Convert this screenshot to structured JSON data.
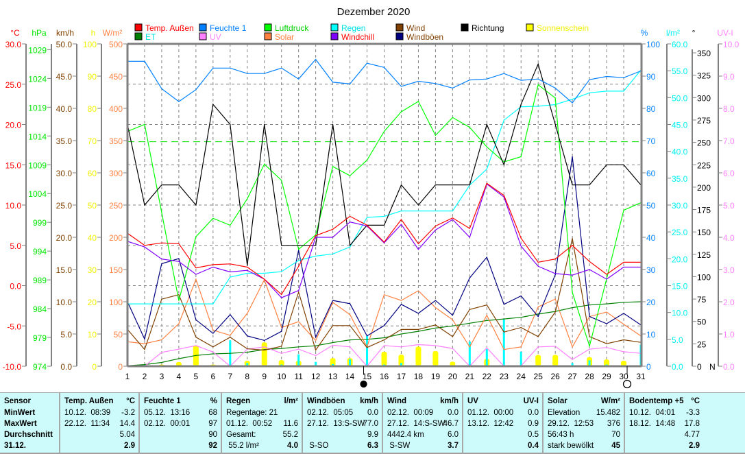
{
  "chart_data": {
    "type": "line",
    "title": "Dezember 2020",
    "xlabel": "",
    "x": [
      1,
      2,
      3,
      4,
      5,
      6,
      7,
      8,
      9,
      10,
      11,
      12,
      13,
      14,
      15,
      16,
      17,
      18,
      19,
      20,
      21,
      22,
      23,
      24,
      25,
      26,
      27,
      28,
      29,
      30,
      31
    ],
    "grid": true,
    "axes": {
      "temp": {
        "unit": "°C",
        "min": -10,
        "max": 30,
        "step": 5,
        "decimals": 1,
        "color": "#ff0000",
        "side": "left"
      },
      "pressure": {
        "unit": "hPa",
        "min": 974,
        "max": 1030,
        "step": 5,
        "first": 974,
        "last": 1029,
        "decimals": 0,
        "color": "#00e600",
        "side": "left",
        "reference": 1013
      },
      "speed": {
        "unit": "km/h",
        "min": 0,
        "max": 50,
        "step": 5,
        "decimals": 1,
        "color": "#804000",
        "side": "left"
      },
      "hours": {
        "unit": "h",
        "min": 0,
        "max": 100,
        "step": 10,
        "decimals": 0,
        "color": "#f0f000",
        "side": "left"
      },
      "solar": {
        "unit": "W/m²",
        "min": 0,
        "max": 500,
        "step": 50,
        "decimals": 0,
        "color": "#ff8040",
        "side": "left"
      },
      "humidity": {
        "unit": "%",
        "min": 0,
        "max": 100,
        "step": 10,
        "decimals": 0,
        "color": "#0080ff",
        "side": "right"
      },
      "rain": {
        "unit": "l/m²",
        "min": 0,
        "max": 60,
        "step": 5,
        "decimals": 1,
        "color": "#00f0f0",
        "side": "right"
      },
      "direction": {
        "unit": "°",
        "min": 0,
        "max": 360,
        "step": 25,
        "first": 25,
        "last": 350,
        "decimals": 0,
        "color": "#000000",
        "side": "right",
        "zero_label": "0",
        "north_label": "N"
      },
      "uv": {
        "unit": "UV-I",
        "min": 0,
        "max": 10,
        "step": 1,
        "decimals": 1,
        "color": "#ff80ff",
        "side": "right"
      }
    },
    "legend": [
      {
        "label": "Temp. Außen",
        "box": "#ff0000",
        "text": "#ff0000"
      },
      {
        "label": "ET",
        "box": "#008000",
        "text": "#00e0e0"
      },
      {
        "label": "Feuchte 1",
        "box": "#0080ff",
        "text": "#0080ff"
      },
      {
        "label": "UV",
        "box": "#ff80ff",
        "text": "#ff80ff"
      },
      {
        "label": "Luftdruck",
        "box": "#00ff00",
        "text": "#00d000"
      },
      {
        "label": "Solar",
        "box": "#ff8040",
        "text": "#ff8040"
      },
      {
        "label": "Regen",
        "box": "#00ffff",
        "text": "#00e0e0"
      },
      {
        "label": "Windchill",
        "box": "#8000ff",
        "text": "#ff0000"
      },
      {
        "label": "Wind",
        "box": "#804000",
        "text": "#804000"
      },
      {
        "label": "Windböen",
        "box": "#000080",
        "text": "#804000"
      },
      {
        "label": "Richtung",
        "box": "#000000",
        "text": "#000000"
      },
      {
        "label": "Sonnenschein",
        "box": "#ffff00",
        "text": "#f0f000"
      }
    ],
    "series": [
      {
        "name": "Sonnenschein",
        "axis": "hours",
        "kind": "bar",
        "color": "#ffff00",
        "values": [
          0,
          0,
          0.5,
          1.3,
          6.5,
          0.5,
          0,
          1.7,
          7.4,
          1.9,
          1.7,
          0,
          2.5,
          2.5,
          0,
          4.5,
          3.6,
          6.1,
          4.7,
          1.4,
          0,
          2.3,
          0,
          0,
          3.5,
          3.5,
          0,
          2.8,
          2.1,
          1.7,
          0
        ]
      },
      {
        "name": "Regen (Tag)",
        "axis": "rain",
        "kind": "thinbar",
        "color": "#00ffff",
        "values": [
          11.6,
          0.3,
          0,
          0,
          0,
          0,
          4.8,
          0.6,
          0,
          0.3,
          2.2,
          0.8,
          0.4,
          1.3,
          5.6,
          0.3,
          0.6,
          0,
          0,
          0,
          4.6,
          3.2,
          8.7,
          2.7,
          0,
          0,
          0.6,
          1.1,
          0.3,
          0,
          4.0
        ]
      },
      {
        "name": "ET",
        "axis": "rain",
        "kind": "line",
        "color": "#008000",
        "values": [
          0.1,
          0.3,
          0.7,
          1.4,
          2.0,
          2.3,
          2.4,
          2.6,
          3.1,
          3.3,
          3.6,
          3.8,
          4.4,
          4.9,
          5.0,
          5.3,
          6.0,
          6.5,
          7.1,
          7.5,
          8.0,
          8.5,
          8.8,
          9.1,
          9.7,
          10.2,
          10.9,
          11.4,
          11.6,
          11.9,
          12.0
        ]
      },
      {
        "name": "UV",
        "axis": "uv",
        "kind": "line",
        "color": "#ff80ff",
        "values": [
          0,
          0,
          0.43,
          0.53,
          0.64,
          0.44,
          0,
          0.53,
          0.6,
          0.4,
          0.53,
          0.33,
          0.65,
          0.6,
          0,
          0.64,
          0.6,
          0.67,
          0.64,
          0.55,
          0,
          0.57,
          0,
          0.01,
          0.6,
          0.62,
          0.21,
          0.53,
          0.58,
          0.45,
          0.4
        ]
      },
      {
        "name": "Solar",
        "axis": "solar",
        "kind": "line",
        "color": "#ff8040",
        "values": [
          38,
          35,
          41,
          66,
          135,
          56,
          48,
          82,
          134,
          60,
          69,
          40,
          99,
          80,
          30,
          111,
          102,
          117,
          91,
          72,
          30,
          79,
          26,
          30,
          92,
          104,
          30,
          77,
          84,
          65,
          47
        ]
      },
      {
        "name": "Wind",
        "axis": "speed",
        "kind": "line",
        "color": "#804000",
        "values": [
          5.7,
          2.6,
          10.4,
          11.1,
          4.5,
          3.0,
          4.5,
          2.7,
          2.5,
          3.1,
          11.5,
          2.5,
          6.3,
          6.3,
          2.9,
          4.1,
          5.7,
          5.7,
          6.4,
          4.6,
          8.8,
          9.5,
          5.3,
          6.0,
          4.6,
          8.4,
          19.8,
          4.6,
          3.5,
          4.1,
          3.7
        ]
      },
      {
        "name": "Windböen",
        "axis": "speed",
        "kind": "line",
        "color": "#000080",
        "values": [
          10.0,
          4.2,
          15.9,
          16.7,
          7.2,
          5.1,
          8.0,
          4.7,
          4.0,
          5.4,
          18.0,
          4.5,
          10.2,
          9.7,
          4.7,
          6.3,
          9.6,
          8.2,
          10.2,
          7.9,
          13.7,
          16.9,
          9.6,
          10.9,
          7.7,
          14.2,
          32.5,
          7.7,
          6.6,
          8.2,
          6.4
        ]
      },
      {
        "name": "Regen",
        "axis": "rain",
        "kind": "line",
        "color": "#00ffff",
        "values": [
          11.6,
          11.6,
          11.6,
          11.6,
          11.6,
          11.6,
          16.6,
          17.3,
          17.3,
          17.6,
          19.7,
          20.5,
          20.9,
          22.2,
          27.7,
          27.9,
          28.9,
          28.9,
          28.9,
          28.9,
          33.7,
          36.7,
          45.8,
          48.3,
          48.4,
          48.7,
          49.7,
          50.9,
          51.2,
          51.2,
          55.1
        ]
      },
      {
        "name": "Luftdruck",
        "axis": "pressure",
        "kind": "line",
        "color": "#00ff00",
        "values": [
          1014.8,
          1016.0,
          1000.7,
          985.4,
          996.5,
          999.7,
          998.5,
          1003.1,
          1009.1,
          1006.3,
          994.3,
          996.8,
          1008.7,
          1007.1,
          1009.8,
          1014.8,
          1018.2,
          1020.0,
          1014.1,
          1017.2,
          1015.5,
          1012.1,
          1009.5,
          1010.4,
          1022.9,
          1020.6,
          986.8,
          977.5,
          989.2,
          1001.1,
          1002.4
        ]
      },
      {
        "name": "Richtung",
        "axis": "direction",
        "kind": "line",
        "color": "#000000",
        "values": [
          270,
          180,
          202.5,
          202.5,
          180,
          292.5,
          270,
          112.5,
          270,
          135,
          135,
          135,
          270,
          135,
          157.5,
          157.5,
          202.5,
          180,
          202.5,
          202.5,
          202.5,
          270,
          225,
          292.5,
          337.5,
          270,
          202.5,
          202.5,
          225,
          225,
          202.5
        ]
      },
      {
        "name": "Feuchte 1",
        "axis": "humidity",
        "kind": "line",
        "color": "#0080ff",
        "values": [
          94.6,
          94.6,
          86.1,
          82.1,
          85.8,
          92.5,
          92.5,
          90.8,
          90.8,
          92.5,
          89.1,
          95.2,
          88.1,
          87.6,
          94.0,
          92.7,
          86.8,
          88.4,
          87.7,
          86.3,
          88.8,
          89.1,
          90.8,
          88.7,
          89.1,
          86.3,
          81.7,
          88.9,
          89.9,
          89.5,
          91.6
        ]
      },
      {
        "name": "Windchill",
        "axis": "temp",
        "kind": "line",
        "color": "#8000ff",
        "values": [
          5.5,
          4.8,
          3.3,
          3.0,
          1.4,
          2.3,
          1.7,
          1.9,
          0.8,
          -1.5,
          -0.6,
          6.0,
          6.0,
          7.9,
          7.4,
          5.3,
          7.6,
          4.5,
          6.9,
          8.2,
          6.0,
          12.6,
          11.0,
          4.9,
          2.4,
          1.5,
          1.3,
          2.0,
          0.8,
          2.3,
          2.3
        ]
      },
      {
        "name": "Temp. Außen",
        "axis": "temp",
        "kind": "line",
        "color": "#ff0000",
        "values": [
          6.5,
          5.0,
          5.3,
          5.2,
          2.2,
          2.6,
          2.7,
          2.3,
          0.8,
          -1.1,
          2.4,
          6.2,
          7.0,
          8.6,
          7.5,
          5.4,
          8.2,
          5.2,
          7.4,
          8.4,
          7.1,
          12.7,
          11.2,
          5.9,
          2.9,
          3.3,
          5.0,
          3.0,
          1.4,
          2.9,
          2.9
        ]
      }
    ],
    "moon_phases": [
      {
        "day": 14.8,
        "phase": "new-moon"
      },
      {
        "day": 30.2,
        "phase": "full-moon"
      }
    ]
  },
  "table": {
    "columns": [
      {
        "header": [
          "Sensor",
          ""
        ],
        "rows": [
          [
            "MinWert",
            ""
          ],
          [
            "MaxWert",
            ""
          ],
          [
            "Durchschnitt",
            ""
          ],
          [
            "31.12.",
            ""
          ]
        ]
      },
      {
        "header": [
          "Temp. Außen",
          "°C"
        ],
        "rows": [
          [
            "10.12.  08:39",
            "-3.2"
          ],
          [
            "22.12.  11:34",
            "14.4"
          ],
          [
            "",
            "5.04"
          ],
          [
            "",
            "2.9"
          ]
        ]
      },
      {
        "header": [
          "Feuchte 1",
          "%"
        ],
        "rows": [
          [
            "05.12.  13:16",
            "68"
          ],
          [
            "02.12.  00:01",
            "97"
          ],
          [
            "",
            "90"
          ],
          [
            "",
            "92"
          ]
        ]
      },
      {
        "header": [
          "Regen",
          "l/m²"
        ],
        "rows": [
          [
            "Regentage: 21",
            ""
          ],
          [
            "01.12.  00:52",
            "11.6"
          ],
          [
            "Gesamt:",
            "55.2"
          ],
          [
            " 55.2 l/m²",
            "4.0"
          ]
        ]
      },
      {
        "header": [
          "Windböen",
          "km/h"
        ],
        "rows": [
          [
            "02.12.  05:05",
            "0.0"
          ],
          [
            "27.12.  13:S-SW",
            "77.0"
          ],
          [
            "",
            "9.9"
          ],
          [
            " S-SO",
            "6.3"
          ]
        ]
      },
      {
        "header": [
          "Wind",
          "km/h"
        ],
        "rows": [
          [
            "02.12.  00:09",
            "0.0"
          ],
          [
            "27.12.  14:S-SW",
            "46.7"
          ],
          [
            "4442.4 km",
            "6.0"
          ],
          [
            " S-SW",
            "3.7"
          ]
        ]
      },
      {
        "header": [
          "UV",
          "UV-I"
        ],
        "rows": [
          [
            "01.12.  00:00",
            "0.0"
          ],
          [
            "13.12.  12:42",
            "0.9"
          ],
          [
            "",
            "0.5"
          ],
          [
            "",
            "0.4"
          ]
        ]
      },
      {
        "header": [
          "Solar",
          "W/m²"
        ],
        "rows": [
          [
            "Elevation",
            "15.482"
          ],
          [
            "29.12.  12:53",
            "376"
          ],
          [
            "56:43 h",
            "70"
          ],
          [
            "stark bewölkt",
            "45"
          ]
        ]
      },
      {
        "header": [
          "Bodentemp +5",
          "°C"
        ],
        "rows": [
          [
            "10.12.  04:01",
            "-3.3"
          ],
          [
            "18.12.  14:48",
            "17.8"
          ],
          [
            "",
            "4.77"
          ],
          [
            "",
            "2.9"
          ]
        ]
      }
    ]
  }
}
